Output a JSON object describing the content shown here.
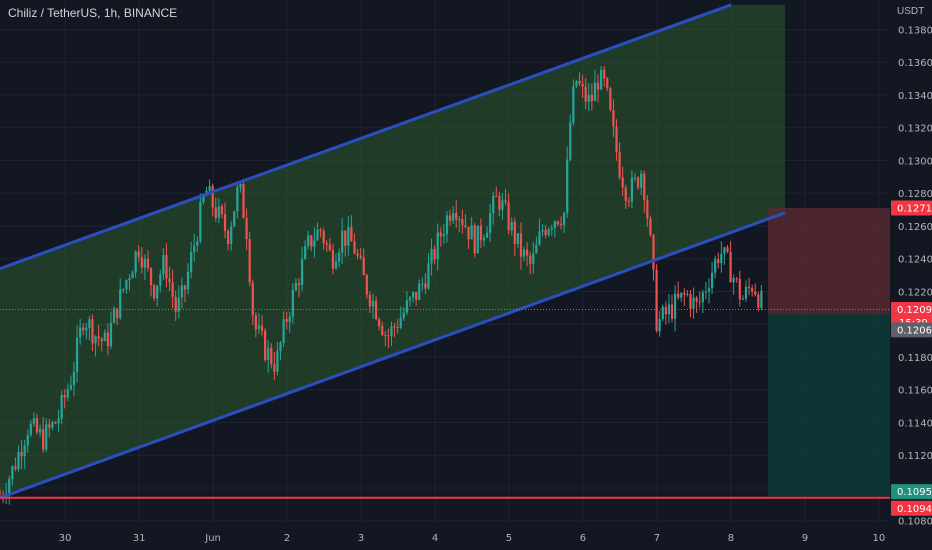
{
  "chart": {
    "title": "Chiliz / TetherUS, 1h, BINANCE",
    "currency": "USDT"
  },
  "colors": {
    "background": "#131722",
    "grid": "#1f2330",
    "up": "#26a69a",
    "down": "#ef5350",
    "channel_line": "#2a4fc1",
    "channel_fill": "#2c5b2f",
    "stop_zone": "#5a2a33",
    "target_zone": "#0e3b3a",
    "support_line": "#f23645",
    "tag_red": "#f23645",
    "tag_green": "#22907f",
    "tag_gray": "#5d606b"
  },
  "price_tags": [
    {
      "label": "0.1271",
      "value": 0.1271,
      "style": "red"
    },
    {
      "label": "0.1209",
      "value": 0.1209,
      "style": "red",
      "sublabel": "15:39"
    },
    {
      "label": "0.1206",
      "value": 0.1206,
      "style": "gray"
    },
    {
      "label": "0.1095",
      "value": 0.1095,
      "style": "green"
    },
    {
      "label": "0.1094",
      "value": 0.1094,
      "style": "red"
    }
  ],
  "chart_data": {
    "type": "candlestick",
    "title": "Chiliz / TetherUS, 1h, BINANCE",
    "ylabel": "USDT",
    "ylim": [
      0.1078,
      0.1398
    ],
    "y_ticks": [
      "0.1080",
      "0.1100",
      "0.1120",
      "0.1140",
      "0.1160",
      "0.1180",
      "0.1200",
      "0.1220",
      "0.1240",
      "0.1260",
      "0.1280",
      "0.1300",
      "0.1320",
      "0.1340",
      "0.1360",
      "0.1380"
    ],
    "x_ticks": [
      {
        "label": "30",
        "day": 0
      },
      {
        "label": "31",
        "day": 1
      },
      {
        "label": "Jun",
        "day": 2
      },
      {
        "label": "2",
        "day": 3
      },
      {
        "label": "3",
        "day": 4
      },
      {
        "label": "4",
        "day": 5
      },
      {
        "label": "5",
        "day": 6
      },
      {
        "label": "6",
        "day": 7
      },
      {
        "label": "7",
        "day": 8
      },
      {
        "label": "8",
        "day": 9
      },
      {
        "label": "9",
        "day": 10
      },
      {
        "label": "10",
        "day": 11
      }
    ],
    "x_range_days": [
      -0.88,
      11.15
    ],
    "grid": true,
    "close_path": [
      [
        -0.88,
        0.1095
      ],
      [
        -0.7,
        0.1112
      ],
      [
        -0.5,
        0.1138
      ],
      [
        -0.3,
        0.113
      ],
      [
        -0.1,
        0.1142
      ],
      [
        0.1,
        0.117
      ],
      [
        0.25,
        0.1205
      ],
      [
        0.4,
        0.1194
      ],
      [
        0.55,
        0.1188
      ],
      [
        0.7,
        0.121
      ],
      [
        0.85,
        0.123
      ],
      [
        1.0,
        0.1248
      ],
      [
        1.1,
        0.1233
      ],
      [
        1.2,
        0.1222
      ],
      [
        1.35,
        0.1238
      ],
      [
        1.5,
        0.1208
      ],
      [
        1.6,
        0.1218
      ],
      [
        1.75,
        0.125
      ],
      [
        1.9,
        0.1282
      ],
      [
        2.05,
        0.1268
      ],
      [
        2.2,
        0.1255
      ],
      [
        2.35,
        0.1284
      ],
      [
        2.45,
        0.126
      ],
      [
        2.55,
        0.12
      ],
      [
        2.7,
        0.1185
      ],
      [
        2.85,
        0.1175
      ],
      [
        3.0,
        0.1205
      ],
      [
        3.15,
        0.1228
      ],
      [
        3.3,
        0.125
      ],
      [
        3.45,
        0.1258
      ],
      [
        3.6,
        0.124
      ],
      [
        3.75,
        0.1255
      ],
      [
        3.9,
        0.1248
      ],
      [
        4.05,
        0.1225
      ],
      [
        4.2,
        0.121
      ],
      [
        4.35,
        0.1192
      ],
      [
        4.5,
        0.1202
      ],
      [
        4.65,
        0.1212
      ],
      [
        4.8,
        0.1222
      ],
      [
        4.95,
        0.1238
      ],
      [
        5.1,
        0.1258
      ],
      [
        5.25,
        0.1275
      ],
      [
        5.4,
        0.1262
      ],
      [
        5.55,
        0.125
      ],
      [
        5.7,
        0.1262
      ],
      [
        5.85,
        0.1278
      ],
      [
        6.0,
        0.1262
      ],
      [
        6.15,
        0.1245
      ],
      [
        6.3,
        0.1235
      ],
      [
        6.45,
        0.1258
      ],
      [
        6.6,
        0.1265
      ],
      [
        6.75,
        0.1268
      ],
      [
        6.82,
        0.132
      ],
      [
        6.9,
        0.135
      ],
      [
        7.0,
        0.134
      ],
      [
        7.1,
        0.1335
      ],
      [
        7.2,
        0.135
      ],
      [
        7.3,
        0.1345
      ],
      [
        7.4,
        0.1318
      ],
      [
        7.5,
        0.1295
      ],
      [
        7.6,
        0.128
      ],
      [
        7.7,
        0.1285
      ],
      [
        7.8,
        0.1295
      ],
      [
        7.9,
        0.1255
      ],
      [
        8.0,
        0.12
      ],
      [
        8.1,
        0.1205
      ],
      [
        8.25,
        0.1212
      ],
      [
        8.4,
        0.1218
      ],
      [
        8.55,
        0.121
      ],
      [
        8.7,
        0.1228
      ],
      [
        8.85,
        0.1245
      ],
      [
        9.0,
        0.1233
      ],
      [
        9.15,
        0.1215
      ],
      [
        9.3,
        0.1225
      ],
      [
        9.45,
        0.1209
      ]
    ],
    "channel": {
      "upper": [
        [
          -0.88,
          0.1234
        ],
        [
          9.0,
          0.1395
        ]
      ],
      "lower": [
        [
          -0.88,
          0.1094
        ],
        [
          9.73,
          0.1268
        ]
      ],
      "fill_to_day": 9.73
    },
    "support_level": 0.1094,
    "position": {
      "from_day": 9.5,
      "stop_top": 0.1271,
      "entry": 0.1206,
      "target": 0.1095
    },
    "last_price": 0.1209,
    "countdown": "15:39"
  }
}
